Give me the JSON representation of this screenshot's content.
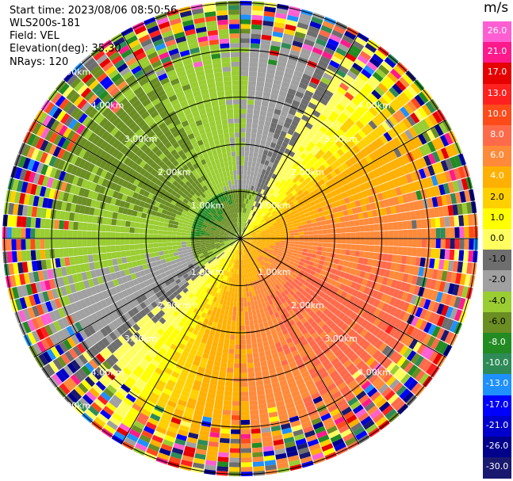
{
  "header": {
    "start_time": "Start time: 2023/08/06 08:50:56",
    "instrument": "WLS200s-181",
    "field": "Field: VEL",
    "elevation": "Elevation(deg): 35.30",
    "nrays": "NRays: 120"
  },
  "colorbar": {
    "unit": "m/s",
    "ticks": [
      "26.0",
      "21.0",
      "17.0",
      "13.0",
      "10.0",
      "8.0",
      "6.0",
      "4.0",
      "2.0",
      "1.0",
      "0.0",
      "-1.0",
      "-2.0",
      "-4.0",
      "-6.0",
      "-8.0",
      "-10.0",
      "-13.0",
      "-17.0",
      "-21.0",
      "-26.0",
      "-30.0"
    ],
    "colors": [
      "#ff5fd2",
      "#ff1a8c",
      "#e60000",
      "#ff2020",
      "#ff4a1a",
      "#ff6a4a",
      "#ff8a3a",
      "#ffb000",
      "#ffd000",
      "#ffff00",
      "#ffff60",
      "#6e6e6e",
      "#a0a0a0",
      "#9acd32",
      "#6b8e23",
      "#228b22",
      "#2e8b57",
      "#1e90ff",
      "#0000ff",
      "#0000cd",
      "#00008b",
      "#191970"
    ]
  },
  "chart_data": {
    "type": "heatmap",
    "ring_labels": [
      "1.00km",
      "2.00km",
      "3.00km",
      "4.00km",
      "5.00km"
    ],
    "range_km": [
      0,
      5.0
    ],
    "value_range": [
      -30.0,
      26.0
    ],
    "nrays": 120
  }
}
